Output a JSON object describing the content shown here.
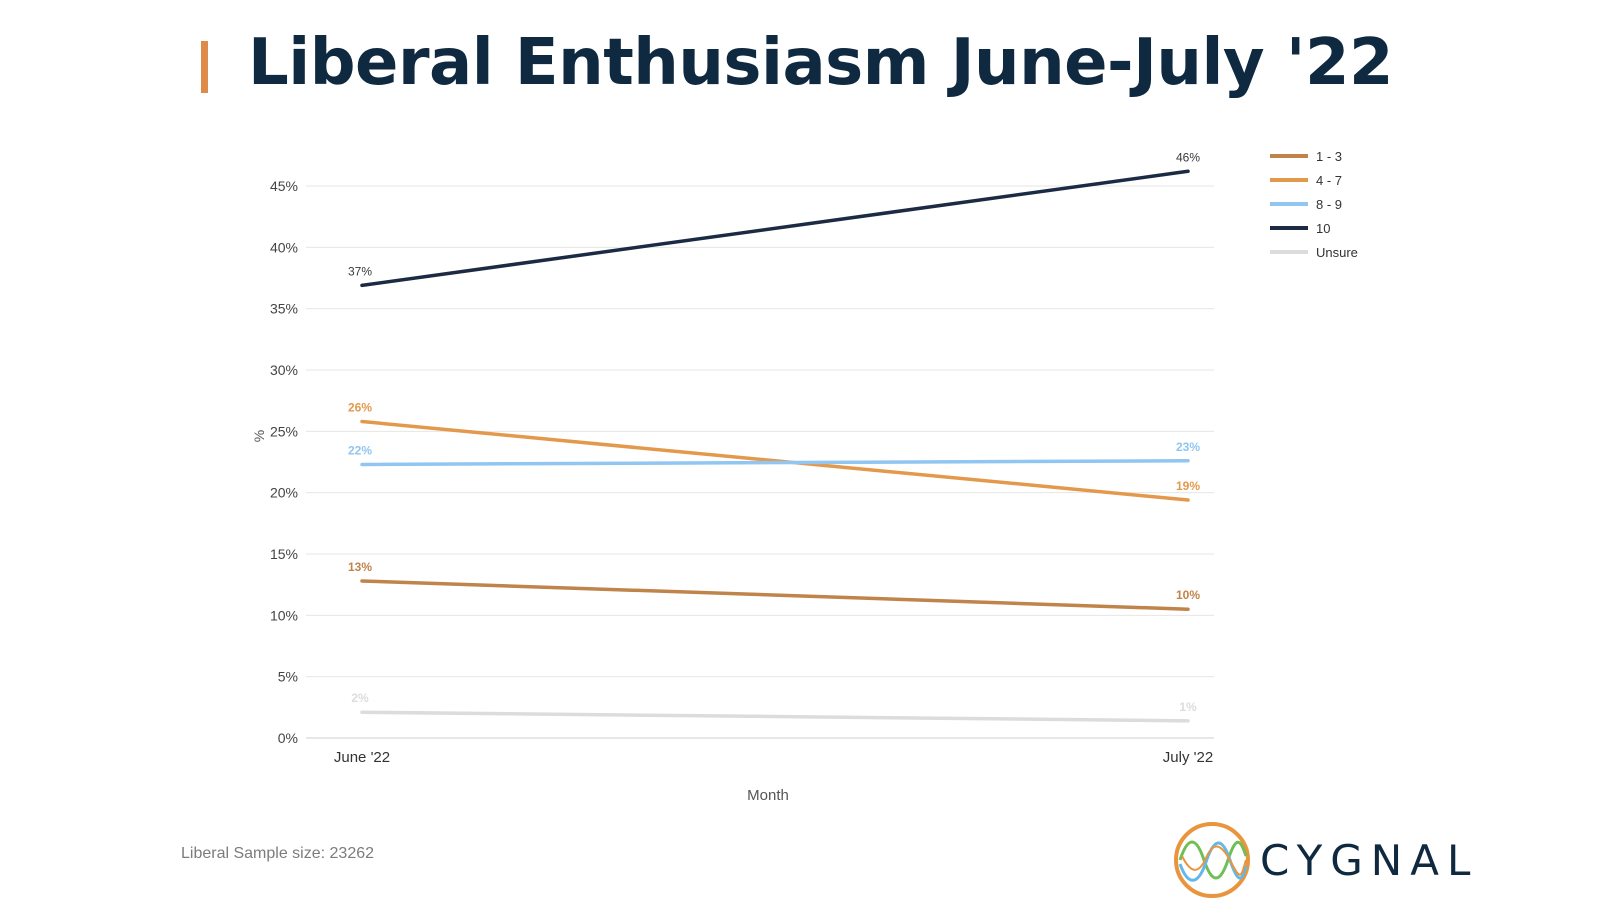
{
  "slide": {
    "title": "Liberal Enthusiasm June-July '22",
    "sample_note": "Liberal Sample size: 23262",
    "brand": "CYGNAL",
    "colors": {
      "accent": "#dd8a4b",
      "title": "#0f2940"
    }
  },
  "chart_data": {
    "type": "line",
    "xlabel": "Month",
    "ylabel": "%",
    "categories": [
      "June '22",
      "July '22"
    ],
    "ylim": [
      0,
      45
    ],
    "yticks": [
      0,
      5,
      10,
      15,
      20,
      25,
      30,
      35,
      40,
      45
    ],
    "ytick_suffix": "%",
    "grid": true,
    "legend_position": "top-right",
    "series": [
      {
        "name": "1 - 3",
        "values": [
          12.8,
          10.5
        ],
        "labels": [
          "13%",
          "10%"
        ],
        "color": "#c0834a"
      },
      {
        "name": "4 - 7",
        "values": [
          25.8,
          19.4
        ],
        "labels": [
          "26%",
          "19%"
        ],
        "color": "#e3994c"
      },
      {
        "name": "8 - 9",
        "values": [
          22.3,
          22.6
        ],
        "labels": [
          "22%",
          "23%"
        ],
        "color": "#90c6f1"
      },
      {
        "name": "10",
        "values": [
          36.9,
          46.2
        ],
        "labels": [
          "37%",
          "46%"
        ],
        "color": "#1c2a44"
      },
      {
        "name": "Unsure",
        "values": [
          2.1,
          1.4
        ],
        "labels": [
          "2%",
          "1%"
        ],
        "color": "#dcdcdc"
      }
    ]
  }
}
